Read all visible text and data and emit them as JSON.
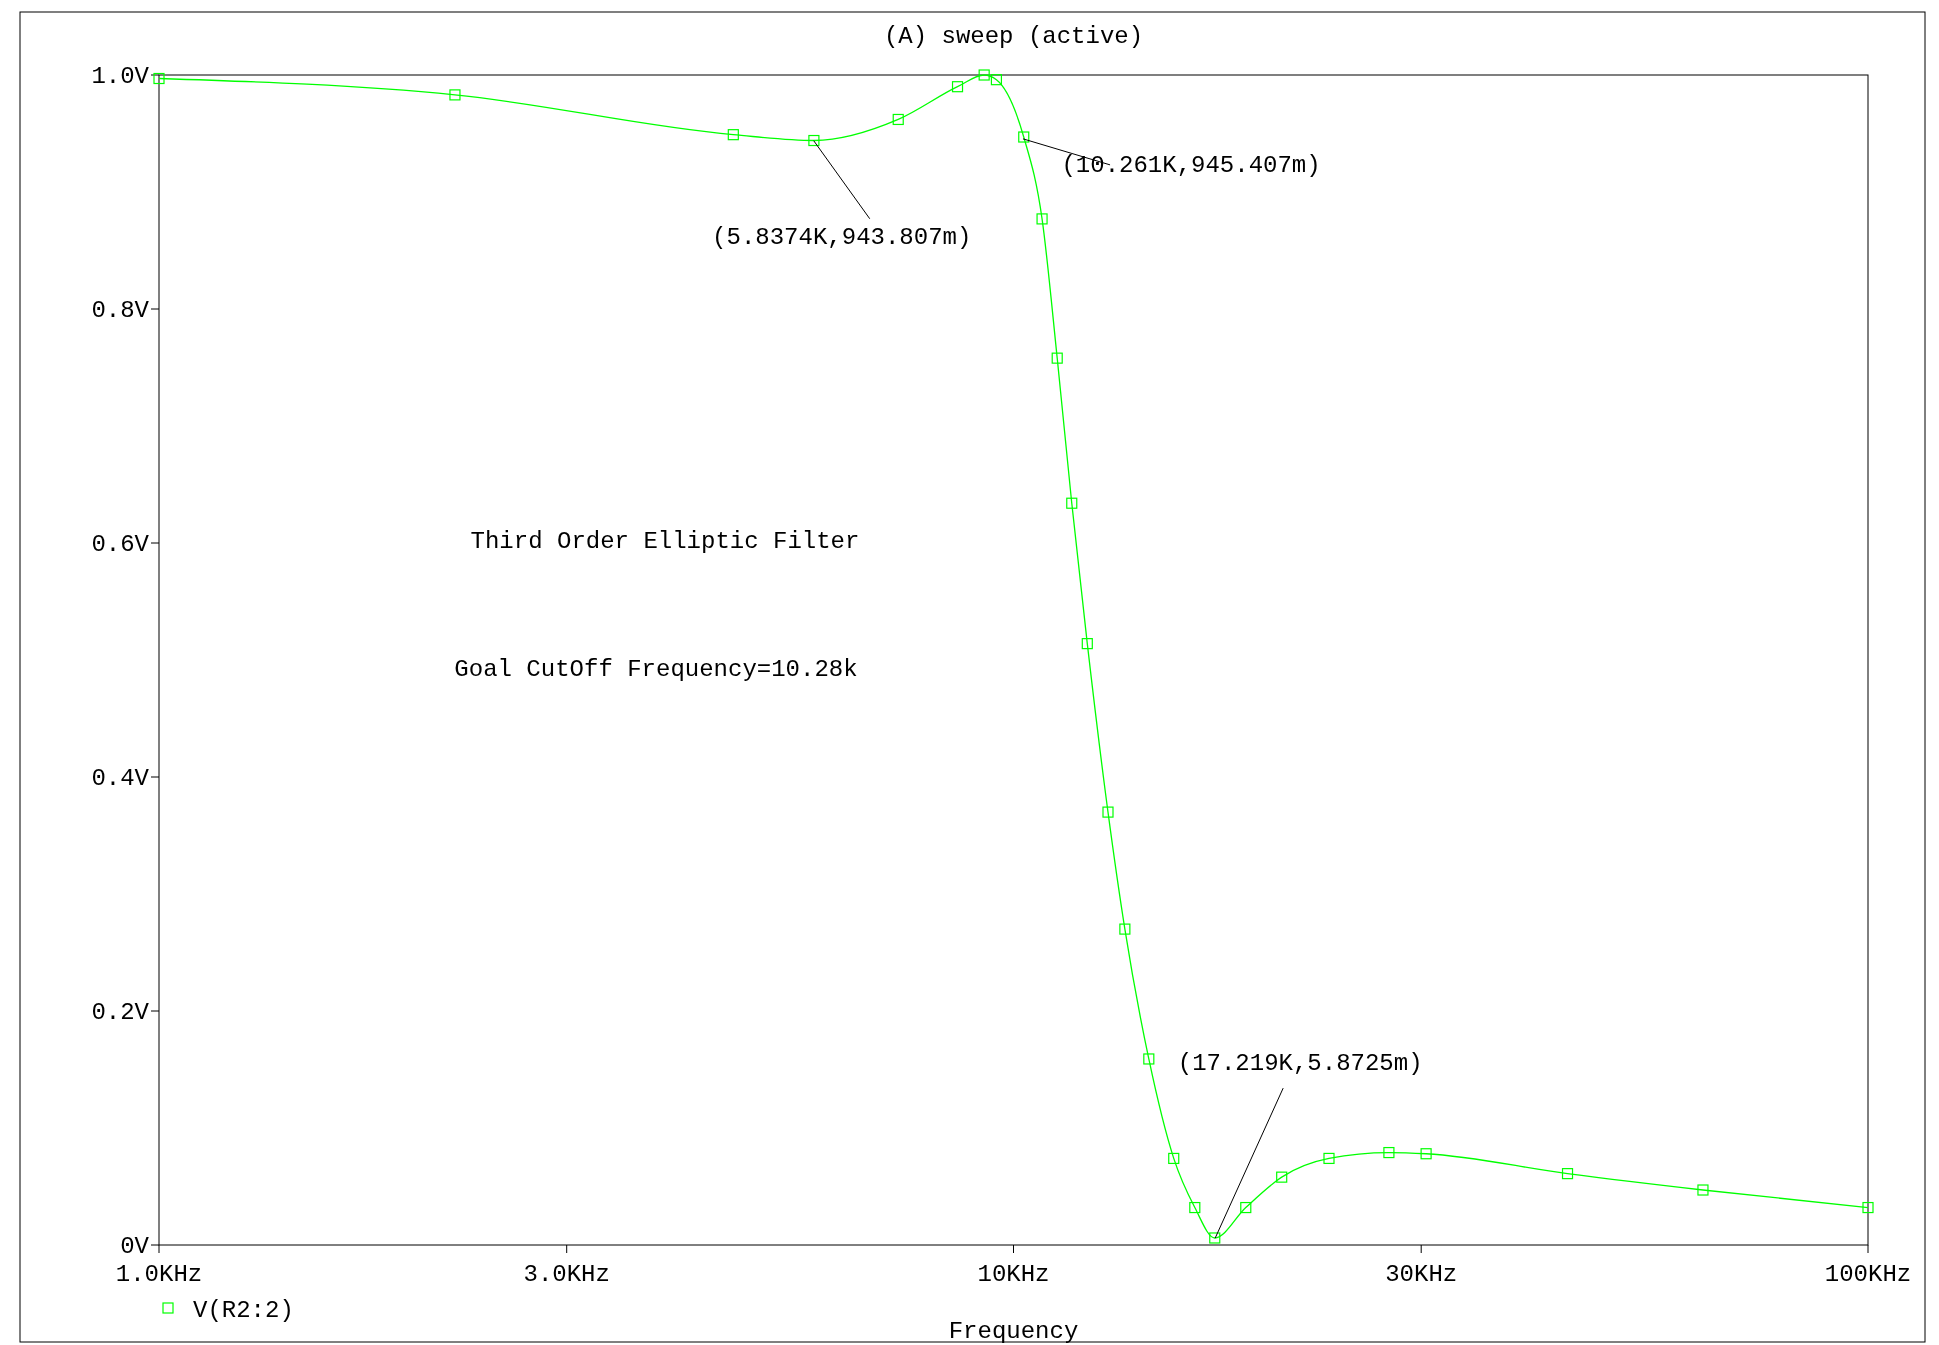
{
  "chart_data": {
    "type": "line",
    "title": "(A) sweep (active)",
    "xlabel": "Frequency",
    "log": "x",
    "grid": false,
    "legend": "bottom left",
    "marker": "square",
    "line_style": "solid",
    "x": [
      1,
      2.22,
      4.7,
      5.84,
      7.33,
      8.6,
      9.24,
      9.55,
      10.28,
      10.8,
      11.25,
      11.7,
      12.2,
      12.9,
      13.5,
      14.4,
      15.4,
      16.3,
      17.2,
      18.7,
      20.6,
      23.4,
      27.5,
      30.4,
      44.5,
      64.1,
      100
    ],
    "series": [
      {
        "name": "V(R2:2)",
        "color": "#00ff00",
        "values": [
          0.997,
          0.983,
          0.949,
          0.944,
          0.962,
          0.99,
          1.0,
          0.996,
          0.947,
          0.877,
          0.758,
          0.634,
          0.514,
          0.37,
          0.27,
          0.159,
          0.074,
          0.032,
          0.006,
          0.032,
          0.058,
          0.074,
          0.079,
          0.078,
          0.061,
          0.047,
          0.032
        ]
      }
    ],
    "xlim": [
      1,
      100
    ],
    "xticks": [
      {
        "value": 1,
        "label": "1.0KHz"
      },
      {
        "value": 3,
        "label": "3.0KHz"
      },
      {
        "value": 10,
        "label": "10KHz"
      },
      {
        "value": 30,
        "label": "30KHz"
      },
      {
        "value": 100,
        "label": "100KHz"
      }
    ],
    "ylim": [
      0,
      1
    ],
    "yticks": [
      {
        "value": 0,
        "label": "0V"
      },
      {
        "value": 0.2,
        "label": "0.2V"
      },
      {
        "value": 0.4,
        "label": "0.4V"
      },
      {
        "value": 0.6,
        "label": "0.6V"
      },
      {
        "value": 0.8,
        "label": "0.8V"
      },
      {
        "value": 1,
        "label": "1.0V"
      }
    ],
    "annotations": [
      {
        "text": "(5.8374K,943.807m)",
        "x": 5.8374,
        "y": 0.943807
      },
      {
        "text": "(10.261K,945.407m)",
        "x": 10.261,
        "y": 0.945407
      },
      {
        "text": "(17.219K,5.8725m)",
        "x": 17.219,
        "y": 0.0058725
      },
      "Third Order Elliptic Filter",
      "Goal CutOff Frequency=10.28k"
    ]
  }
}
